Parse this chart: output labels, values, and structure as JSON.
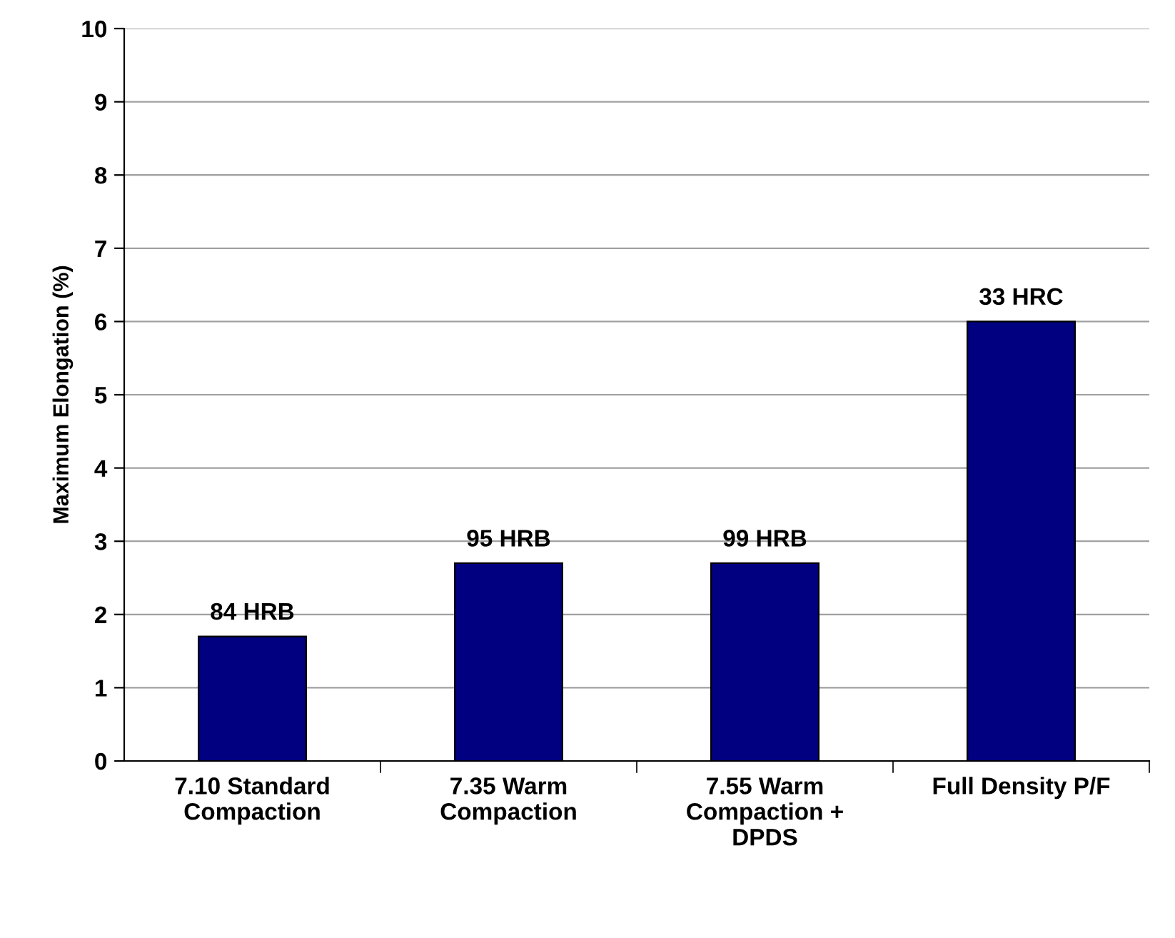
{
  "chart_data": {
    "type": "bar",
    "ylabel": "Maximum Elongation (%)",
    "categories": [
      "7.10 Standard\nCompaction",
      "7.35 Warm\nCompaction",
      "7.55 Warm\nCompaction +\nDPDS",
      "Full Density P/F"
    ],
    "values": [
      1.7,
      2.7,
      2.7,
      6.0
    ],
    "color": "#000080",
    "annotations": [
      {
        "text": "84 HRB",
        "x": "7.10 Standard\nCompaction",
        "y": 1.7
      },
      {
        "text": "95 HRB",
        "x": "7.35 Warm\nCompaction",
        "y": 2.7
      },
      {
        "text": "99 HRB",
        "x": "7.55 Warm\nCompaction +\nDPDS",
        "y": 2.7
      },
      {
        "text": "33 HRC",
        "x": "Full Density P/F",
        "y": 6.0
      }
    ],
    "ylim": [
      0,
      10
    ],
    "yticks": [
      0,
      1,
      2,
      3,
      4,
      5,
      6,
      7,
      8,
      9,
      10
    ],
    "grid": "y"
  }
}
